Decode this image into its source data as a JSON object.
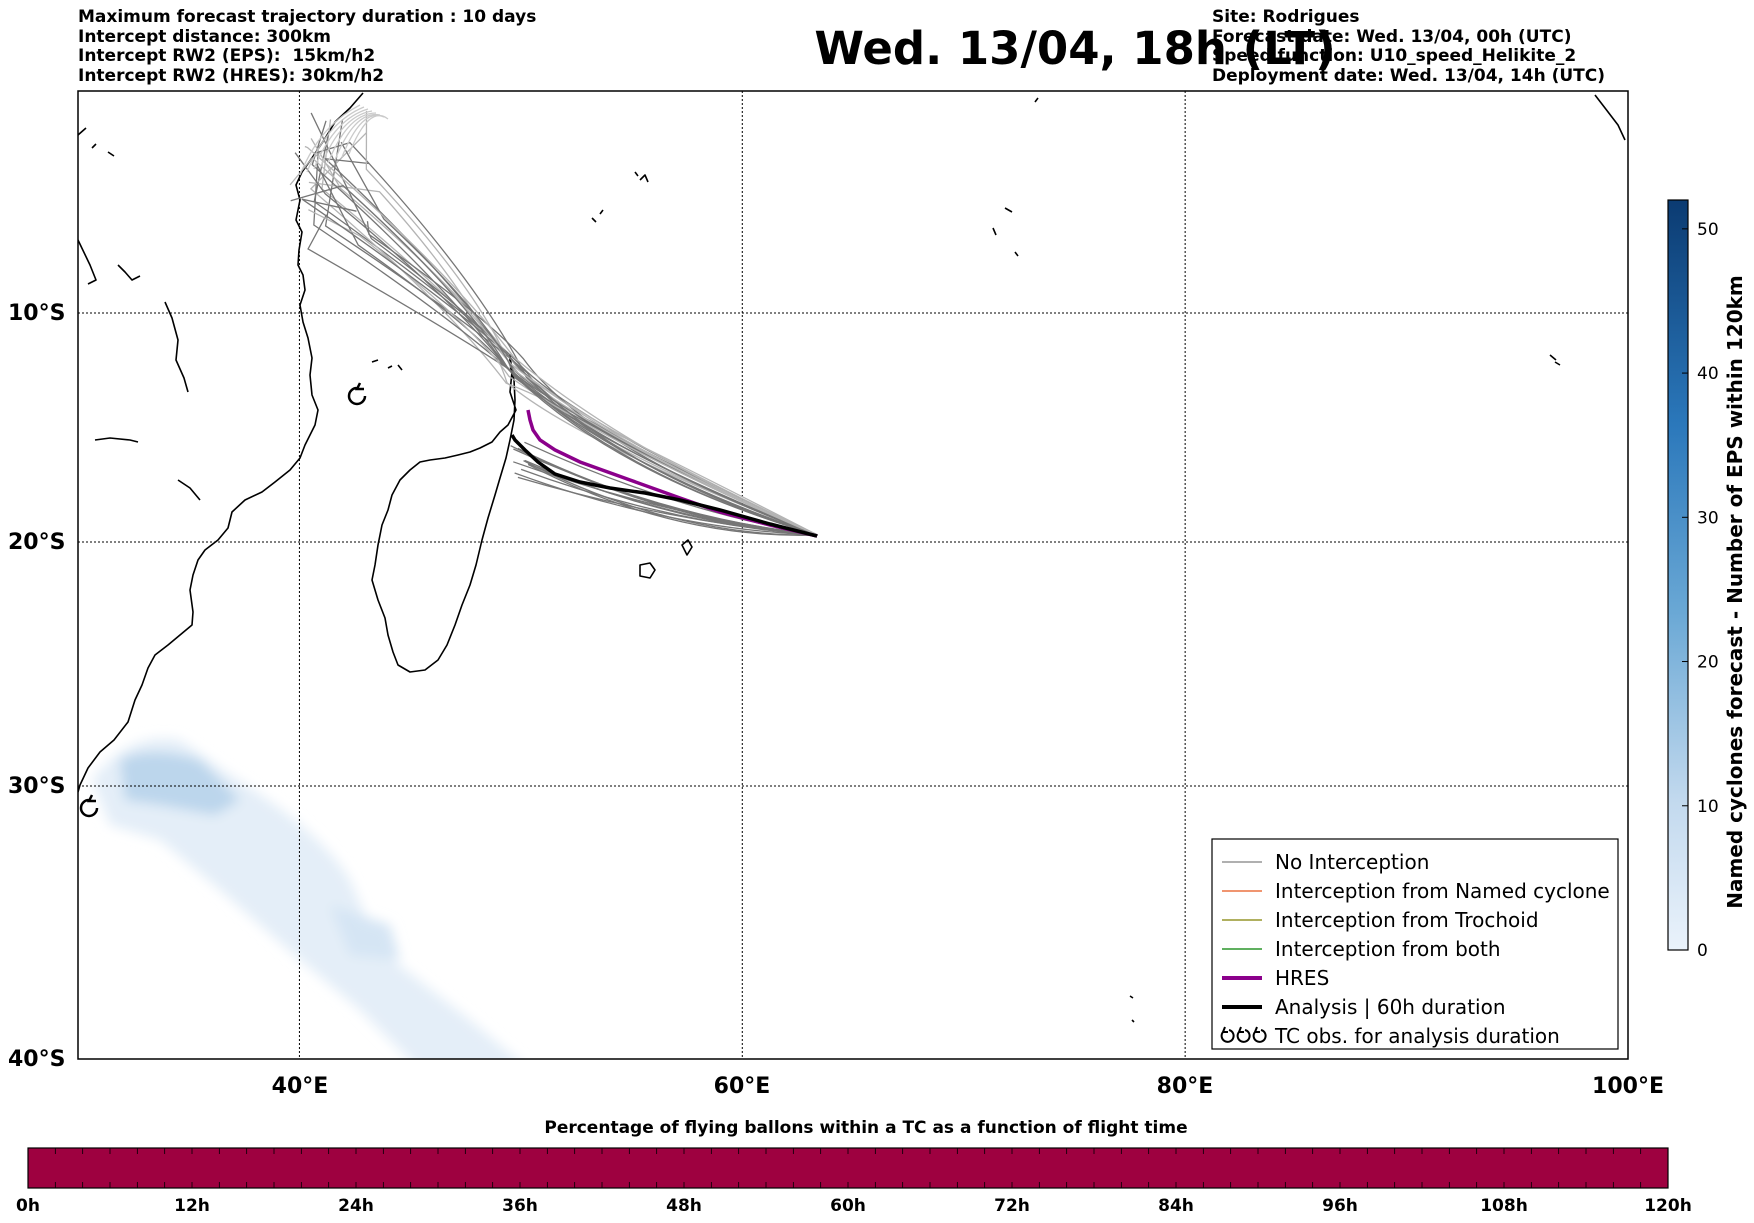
{
  "header": {
    "left_lines": [
      "Maximum forecast trajectory duration : 10 days",
      "Intercept distance: 300km",
      "Intercept RW2 (EPS):  15km/h2",
      "Intercept RW2 (HRES): 30km/h2"
    ],
    "title": "Wed. 13/04, 18h (LT)",
    "right_lines": [
      "Site: Rodrigues",
      "Forecast date: Wed. 13/04, 00h (UTC)",
      "Speed function: U10_speed_Helikite_2",
      "Deployment date: Wed. 13/04, 14h (UTC)"
    ]
  },
  "map": {
    "lat_labels": [
      "10°S",
      "20°S",
      "30°S",
      "40°S"
    ],
    "lon_labels": [
      "40°E",
      "60°E",
      "80°E",
      "100°E"
    ],
    "lon_range": [
      30,
      100
    ],
    "lat_range": [
      -40,
      0.3
    ],
    "site": {
      "lon": 63.4,
      "lat": -19.7
    },
    "land_color": "#000000",
    "hres_color": "#8b008b",
    "analysis_color": "#000000",
    "eps_color": "#707070"
  },
  "legend": {
    "items": [
      {
        "label": "No Interception",
        "color": "#808080",
        "width": 1.2
      },
      {
        "label": "Interception from Named cyclone",
        "color": "#e8561a",
        "width": 1.2
      },
      {
        "label": "Interception from Trochoid",
        "color": "#808000",
        "width": 1.2
      },
      {
        "label": "Interception from both",
        "color": "#008000",
        "width": 1.2
      },
      {
        "label": "HRES",
        "color": "#8b008b",
        "width": 4
      },
      {
        "label": "Analysis | 60h duration",
        "color": "#000000",
        "width": 4
      },
      {
        "label": "TC obs. for analysis duration",
        "symbol": "cyclone-icon"
      }
    ]
  },
  "colorbar": {
    "title": "Named cyclones forecast - Number of EPS within 120km",
    "ticks": [
      "0",
      "10",
      "20",
      "30",
      "40",
      "50"
    ],
    "range": [
      0,
      52
    ],
    "color_low": "#eaf2fb",
    "color_high": "#0b3b72"
  },
  "timebar": {
    "title": "Percentage of flying ballons within a TC as a function of flight time",
    "ticks": [
      "0h",
      "12h",
      "24h",
      "36h",
      "48h",
      "60h",
      "72h",
      "84h",
      "96h",
      "108h",
      "120h"
    ],
    "range_hours": [
      0,
      120
    ],
    "fill_color": "#9e0140"
  }
}
